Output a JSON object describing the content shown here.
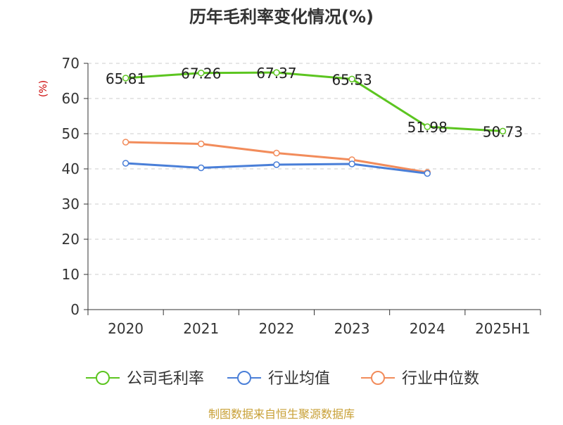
{
  "chart_data": {
    "type": "line",
    "title": "历年毛利率变化情况(%)",
    "ylabel": "(%)",
    "xlabel": "",
    "categories": [
      "2020",
      "2021",
      "2022",
      "2023",
      "2024",
      "2025H1"
    ],
    "ylim": [
      0,
      70
    ],
    "yticks": [
      0,
      10,
      20,
      30,
      40,
      50,
      60,
      70
    ],
    "grid": true,
    "legend_position": "bottom",
    "series": [
      {
        "name": "公司毛利率",
        "color": "#5cc520",
        "values": [
          65.81,
          67.26,
          67.37,
          65.53,
          51.98,
          50.73
        ],
        "labels": [
          "65.81",
          "67.26",
          "67.37",
          "65.53",
          "51.98",
          "50.73"
        ]
      },
      {
        "name": "行业均值",
        "color": "#4a7fd8",
        "values": [
          41.6,
          40.3,
          41.2,
          41.4,
          38.7,
          null
        ]
      },
      {
        "name": "行业中位数",
        "color": "#f28c5b",
        "values": [
          47.6,
          47.1,
          44.5,
          42.6,
          39.0,
          null
        ]
      }
    ]
  },
  "source_note": "制图数据来自恒生聚源数据库",
  "colors": {
    "title": "#333333",
    "axis": "#333333",
    "grid": "#cccccc",
    "ylabel": "#cc0000",
    "source_note": "#c8a036"
  }
}
